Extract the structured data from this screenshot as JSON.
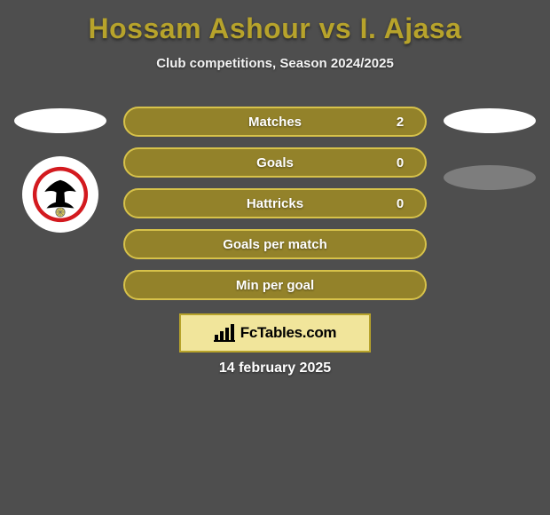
{
  "title": {
    "text": "Hossam Ashour vs I. Ajasa",
    "color": "#b7a32b"
  },
  "subtitle": "Club competitions, Season 2024/2025",
  "stats": {
    "pill_fill": "#93822a",
    "pill_border": "#d7c24a",
    "rows": [
      {
        "label": "Matches",
        "left": "",
        "right": "2",
        "with_values": true
      },
      {
        "label": "Goals",
        "left": "",
        "right": "0",
        "with_values": true
      },
      {
        "label": "Hattricks",
        "left": "",
        "right": "0",
        "with_values": true
      },
      {
        "label": "Goals per match",
        "left": "",
        "right": "",
        "with_values": false
      },
      {
        "label": "Min per goal",
        "left": "",
        "right": "",
        "with_values": false
      }
    ]
  },
  "left_column": {
    "ellipse_color": "#ffffff",
    "club_logo": {
      "bg": "#ffffff",
      "red": "#d31a1f",
      "bird": "#000000",
      "ball": "#6a6a6a",
      "ribbon": "#d8c75b"
    }
  },
  "right_column": {
    "ellipse1_color": "#ffffff",
    "ellipse2_color": "#7d7d7d"
  },
  "brand": {
    "text": "FcTables.com",
    "box_fill": "#f1e59b",
    "box_border": "#b7a32b",
    "icon_color": "#000000"
  },
  "date": "14 february 2025",
  "background_color": "#4e4e4e"
}
